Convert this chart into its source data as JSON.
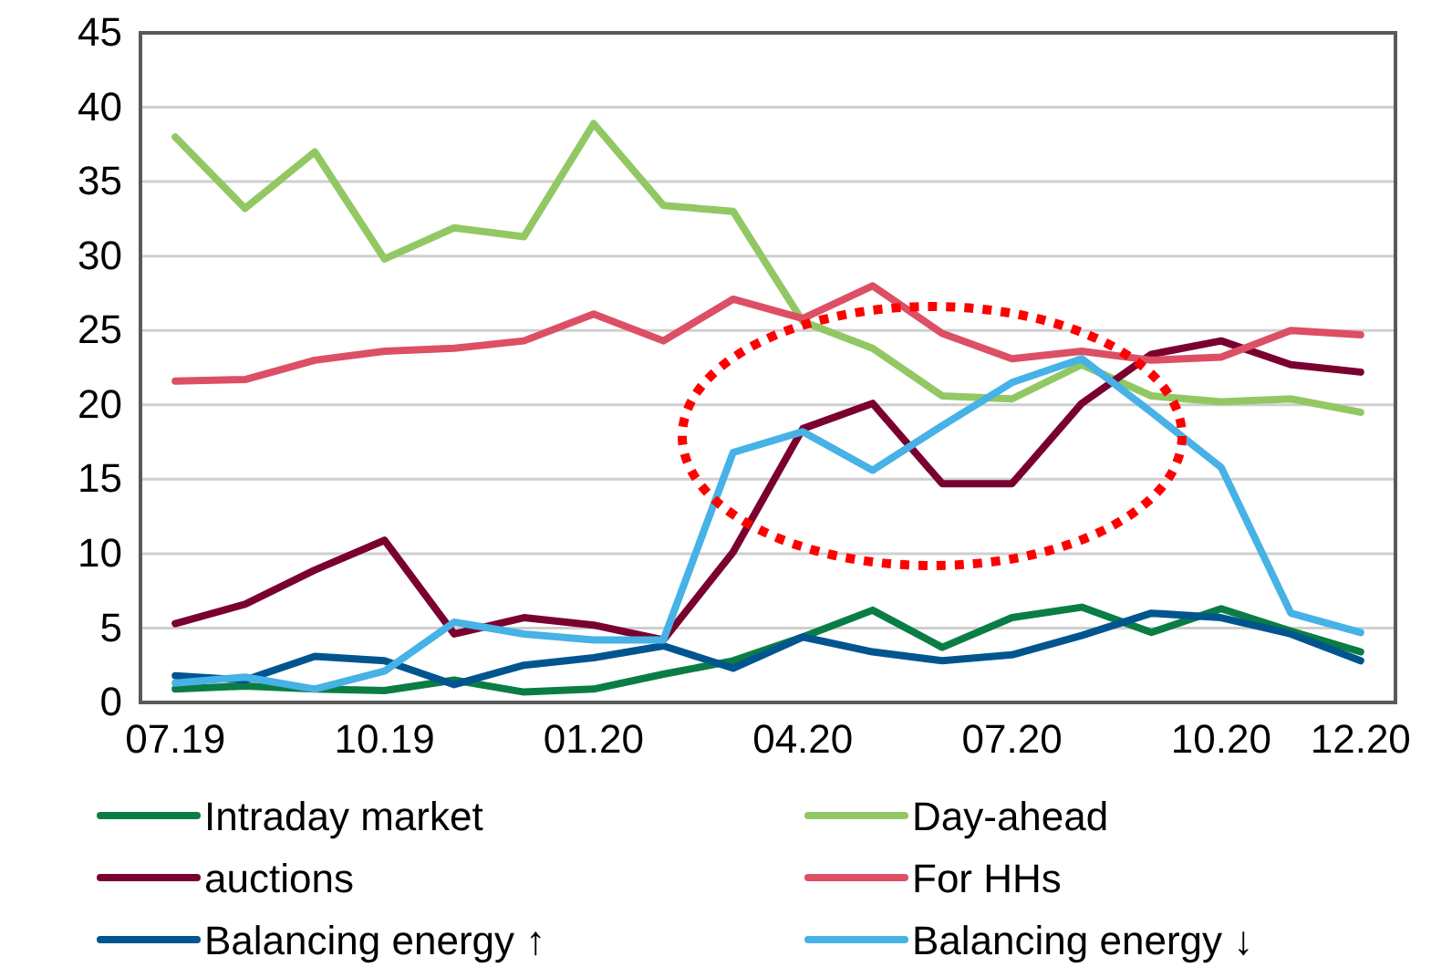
{
  "chart_data": {
    "type": "line",
    "categories": [
      "07.19",
      null,
      null,
      "10.19",
      null,
      null,
      "01.20",
      null,
      null,
      "04.20",
      null,
      null,
      "07.20",
      null,
      null,
      "10.20",
      null,
      "12.20"
    ],
    "ylim": [
      0,
      45
    ],
    "yticks": [
      0,
      5,
      10,
      15,
      20,
      25,
      30,
      35,
      40,
      45
    ],
    "grid": "y",
    "legend": "bottom",
    "marker": "none",
    "line_style": "solid",
    "series": [
      {
        "name": "Intraday market",
        "color": "#0a7d45",
        "values": [
          0.9,
          1.1,
          0.9,
          0.8,
          1.5,
          0.7,
          0.9,
          1.9,
          2.8,
          4.4,
          6.2,
          3.7,
          5.7,
          6.4,
          4.7,
          6.3,
          4.8,
          3.4
        ]
      },
      {
        "name": "Day-ahead",
        "color": "#92c863",
        "values": [
          38.0,
          33.2,
          37.0,
          29.8,
          31.9,
          31.3,
          38.9,
          33.4,
          33.0,
          25.6,
          23.8,
          20.6,
          20.4,
          22.7,
          20.6,
          20.2,
          20.4,
          19.5
        ]
      },
      {
        "name": "auctions",
        "color": "#7a0030",
        "values": [
          5.3,
          6.6,
          8.9,
          10.9,
          4.6,
          5.7,
          5.2,
          4.2,
          10.1,
          18.4,
          20.1,
          14.7,
          14.7,
          20.1,
          23.4,
          24.3,
          22.7,
          22.2
        ]
      },
      {
        "name": "For HHs",
        "color": "#dc4f64",
        "values": [
          21.6,
          21.7,
          23.0,
          23.6,
          23.8,
          24.3,
          26.1,
          24.3,
          27.1,
          25.8,
          28.0,
          24.8,
          23.1,
          23.6,
          23.0,
          23.2,
          25.0,
          24.7
        ]
      },
      {
        "name": "Balancing energy ↑",
        "color": "#00558f",
        "values": [
          1.8,
          1.5,
          3.1,
          2.8,
          1.2,
          2.5,
          3.0,
          3.8,
          2.3,
          4.4,
          3.4,
          2.8,
          3.2,
          4.5,
          6.0,
          5.7,
          4.6,
          2.8
        ]
      },
      {
        "name": "Balancing energy ↓",
        "color": "#46b2e6",
        "values": [
          1.3,
          1.7,
          0.9,
          2.1,
          5.4,
          4.6,
          4.2,
          4.2,
          16.8,
          18.2,
          15.6,
          18.6,
          21.5,
          23.1,
          19.5,
          15.8,
          6.0,
          4.7
        ]
      }
    ]
  }
}
